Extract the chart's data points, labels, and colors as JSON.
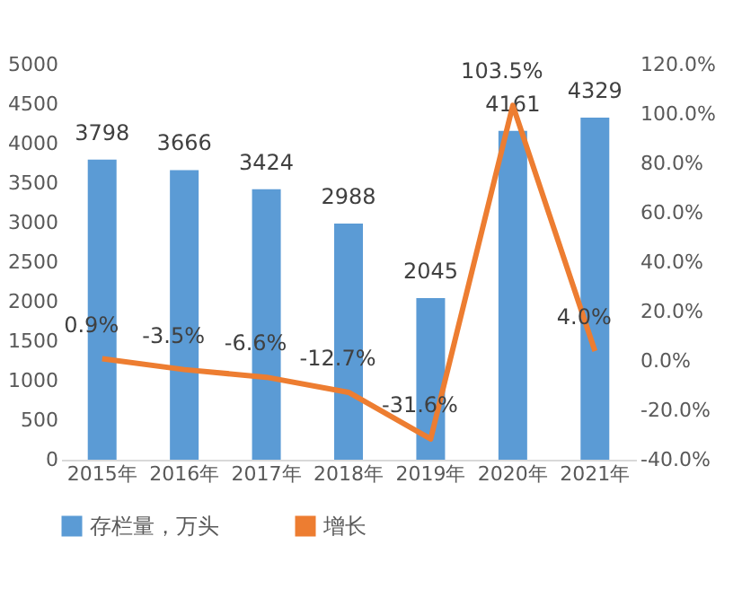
{
  "chart_data": {
    "type": "bar",
    "categories": [
      "2015年",
      "2016年",
      "2017年",
      "2018年",
      "2019年",
      "2020年",
      "2021年"
    ],
    "series": [
      {
        "name": "存栏量，万头",
        "color": "#5b9bd5",
        "values": [
          3798,
          3666,
          3424,
          2988,
          2045,
          4161,
          4329
        ]
      },
      {
        "name": "增长",
        "type": "line",
        "axis": "y2",
        "color": "#ed7d31",
        "values": [
          0.9,
          -3.5,
          -6.6,
          -12.7,
          -31.6,
          103.5,
          4.0
        ],
        "value_labels": [
          "0.9%",
          "-3.5%",
          "-6.6%",
          "-12.7%",
          "-31.6%",
          "103.5%",
          "4.0%"
        ]
      }
    ],
    "ylim": [
      0,
      5000
    ],
    "yticks": [
      0,
      500,
      1000,
      1500,
      2000,
      2500,
      3000,
      3500,
      4000,
      4500,
      5000
    ],
    "y2lim": [
      -40,
      120
    ],
    "y2ticks": [
      {
        "value": -40,
        "label": "-40.0%"
      },
      {
        "value": -20,
        "label": "-20.0%"
      },
      {
        "value": 0,
        "label": "0.0%"
      },
      {
        "value": 20,
        "label": "20.0%"
      },
      {
        "value": 40,
        "label": "40.0%"
      },
      {
        "value": 60,
        "label": "60.0%"
      },
      {
        "value": 80,
        "label": "80.0%"
      },
      {
        "value": 100,
        "label": "100.0%"
      },
      {
        "value": 120,
        "label": "120.0%"
      }
    ],
    "data_labels": true,
    "legend": "bottom",
    "grid": false,
    "line_style": "solid",
    "marker": "none"
  }
}
